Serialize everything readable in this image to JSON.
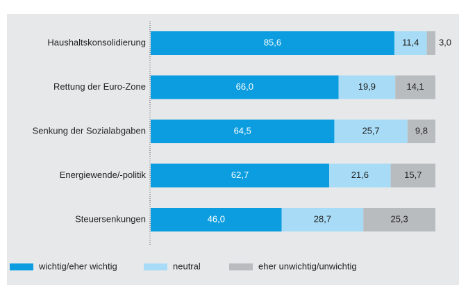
{
  "chart_data": {
    "type": "stacked-barh",
    "categories": [
      "Haushaltskonsolidierung",
      "Rettung der Euro-Zone",
      "Senkung der Sozialabgaben",
      "Energiewende/-politik",
      "Steuersenkungen"
    ],
    "series": [
      {
        "name": "wichtig/eher wichtig",
        "color": "#0b9ddf",
        "values": [
          85.6,
          66.0,
          64.5,
          62.7,
          46.0
        ],
        "value_labels": [
          "85,6",
          "66,0",
          "64,5",
          "62,7",
          "46,0"
        ]
      },
      {
        "name": "neutral",
        "color": "#a8dcf6",
        "values": [
          11.4,
          19.9,
          25.7,
          21.6,
          28.7
        ],
        "value_labels": [
          "11,4",
          "19,9",
          "25,7",
          "21,6",
          "28,7"
        ]
      },
      {
        "name": "eher unwichtig/unwichtig",
        "color": "#b8bcbf",
        "values": [
          3.0,
          14.1,
          9.8,
          15.7,
          25.3
        ],
        "value_labels": [
          "3,0",
          "14,1",
          "9,8",
          "15,7",
          "25,3"
        ]
      }
    ],
    "xlim": [
      0,
      100
    ],
    "legend": "bottom-left"
  }
}
